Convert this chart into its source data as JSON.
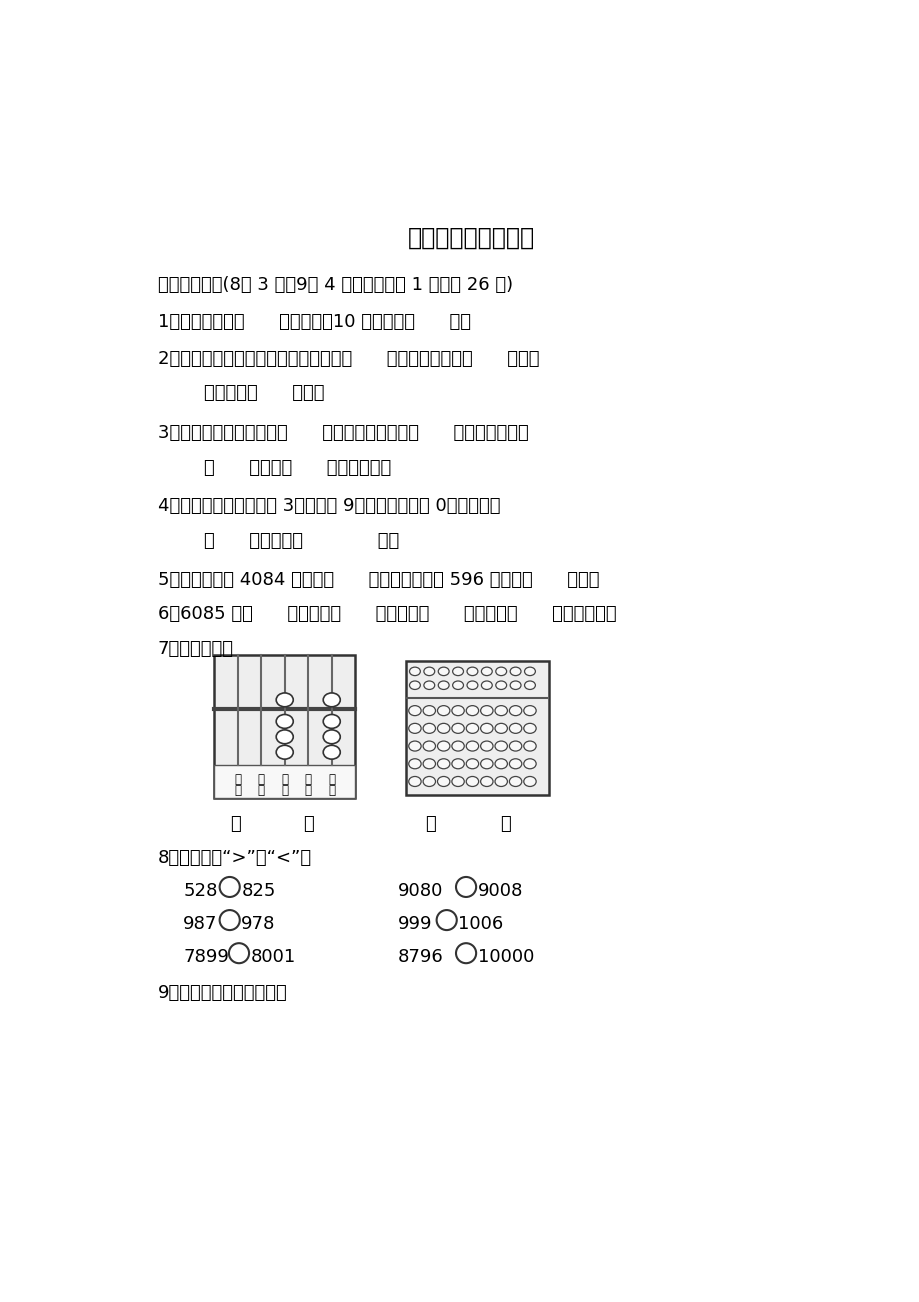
{
  "title": "第七单元过关检测卷",
  "bg_color": "#ffffff",
  "section1_header": "一、我会填。(8题 3 分，9题 4 分，其余每空 1 分，共 26 分)",
  "q1": "1．一千里面有（      ）个一百，10 个一千是（      ）。",
  "q2a": "2．数位顺序表中，从右边起第三位是（      ）位，第四位是（      ）位，",
  "q2b": "万位是第（      ）位。",
  "q3a": "3．算盘上一个上珠表示（      ），一个下珠表示（      ），以空档表示",
  "q3b": "（      ），以（      ）表示档位。",
  "q4a": "4．一个四位数，千位是 3，个位是 9，其余各位都是 0，这个数是",
  "q4b": "（      ），读作（             ）。",
  "q5": "5．实验小学有 4084 人，约（      ）人，二年级有 596 人，约（      ）人。",
  "q6": "6．6085 由（      ）个千，（      ）个百，（      ）个十，（      ）个一组成。",
  "q7": "7．看图写数。",
  "q8_header": "8．在里填上“>”或“<”。",
  "q8_row1_left": "528",
  "q8_row1_mid": "825",
  "q8_row1_right1": "9080",
  "q8_row1_right2": "9008",
  "q8_row2_left": "987",
  "q8_row2_mid": "978",
  "q8_row2_right1": "999",
  "q8_row2_right2": "1006",
  "q8_row3_left": "7899",
  "q8_row3_mid": "8001",
  "q8_row3_right1": "8796",
  "q8_row3_right2": "10000",
  "q9": "9．按顺序排列下列各数。",
  "abacus_labels1": [
    "万",
    "千",
    "百",
    "十",
    "个"
  ],
  "abacus_labels2": [
    "位",
    "位",
    "位",
    "位",
    "位"
  ]
}
